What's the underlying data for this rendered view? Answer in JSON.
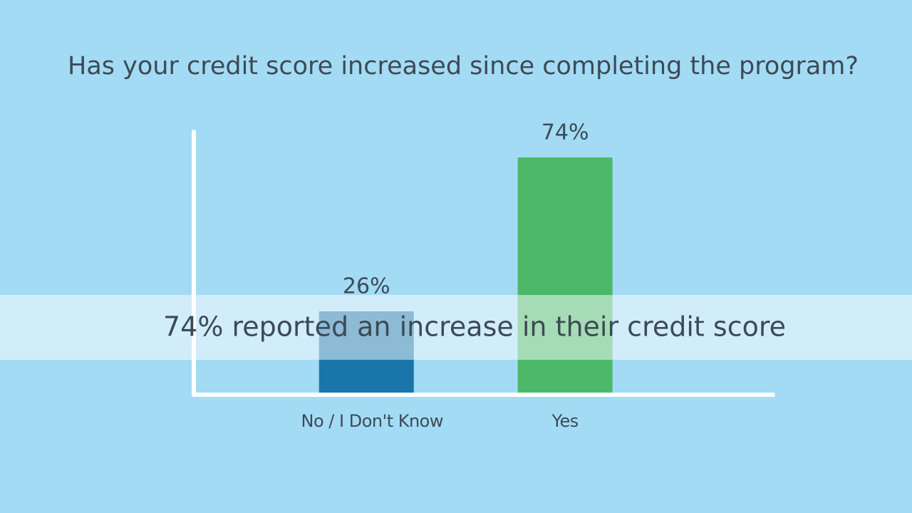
{
  "chart_data": {
    "type": "bar",
    "title": "Has your credit score increased since completing the program?",
    "categories": [
      "No / I Don't Know",
      "Yes"
    ],
    "values": [
      26,
      74
    ],
    "value_labels": [
      "26%",
      "74%"
    ],
    "colors": [
      "#1a75aa",
      "#4cb86a"
    ],
    "ylim": [
      0,
      82
    ],
    "annotation": "74% reported an increase in their credit score"
  }
}
